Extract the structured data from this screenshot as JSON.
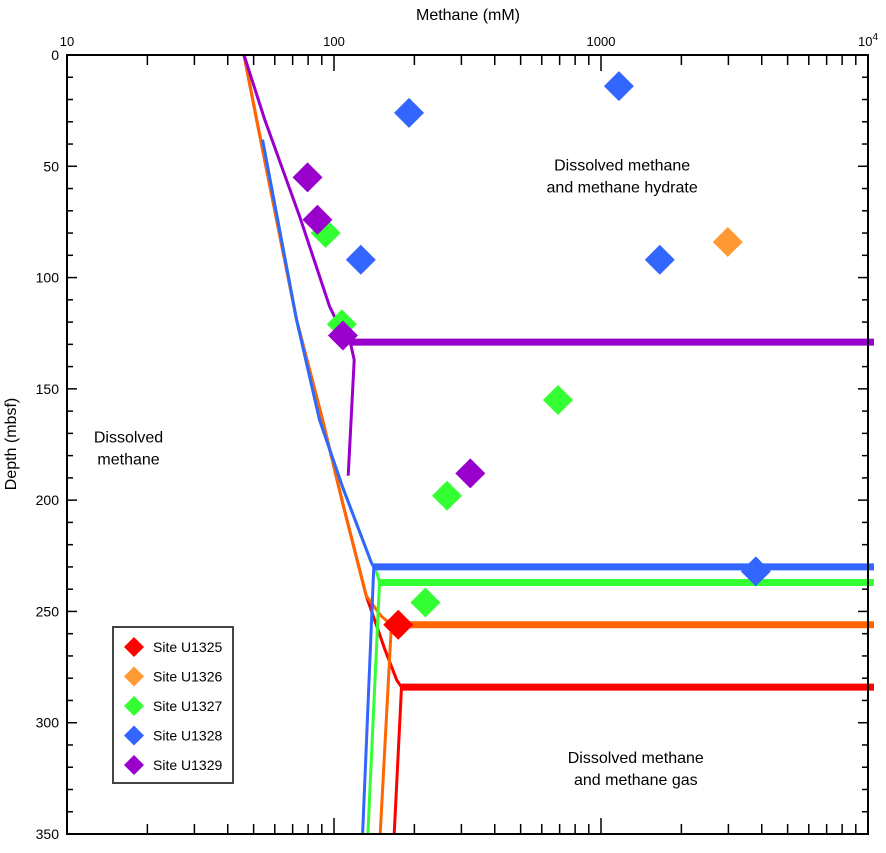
{
  "chart_data": {
    "type": "scatter",
    "title": "",
    "xlabel": "Methane (mM)",
    "ylabel": "Depth (mbsf)",
    "xscale": "log",
    "xlim": [
      10,
      10000
    ],
    "ylim": [
      0,
      350
    ],
    "y_inverted": true,
    "x_tick_labels": [
      {
        "v": 10,
        "t": "10"
      },
      {
        "v": 100,
        "t": "100"
      },
      {
        "v": 1000,
        "t": "1000"
      },
      {
        "v": 10000,
        "t": "10",
        "sup": "4"
      }
    ],
    "y_ticks": [
      0,
      50,
      100,
      150,
      200,
      250,
      300,
      350
    ],
    "legend_position": "bottom-left",
    "annotations": [
      {
        "lines": [
          "Dissolved methane",
          "and methane hydrate"
        ],
        "x": 1200,
        "y": 52
      },
      {
        "lines": [
          "Dissolved",
          "methane"
        ],
        "x": 17,
        "y": 174
      },
      {
        "lines": [
          "Dissolved methane",
          "and methane gas"
        ],
        "x": 1350,
        "y": 318
      }
    ],
    "series": [
      {
        "name": "Site U1325",
        "color": "#ff0000",
        "points": [
          [
            174,
            256
          ]
        ],
        "lines": [
          [
            [
              46,
              0
            ],
            [
              51.3,
              29
            ],
            [
              72.4,
              119
            ],
            [
              90.6,
              164
            ],
            [
              107.6,
              201
            ],
            [
              132,
              243
            ],
            [
              155,
              267
            ],
            [
              172,
              281
            ],
            [
              179,
              284
            ],
            [
              10000,
              284
            ]
          ],
          [
            [
              179,
              284
            ],
            [
              168,
              350
            ]
          ]
        ]
      },
      {
        "name": "Site U1326",
        "color": "#ff9933",
        "line_color": "#ff6600",
        "points": [
          [
            2985,
            84
          ]
        ],
        "lines": [
          [
            [
              46,
              0
            ],
            [
              51.3,
              29
            ],
            [
              72.4,
              119
            ],
            [
              90.6,
              164
            ],
            [
              107.6,
              201
            ],
            [
              132,
              243
            ],
            [
              150,
              252
            ],
            [
              164,
              256
            ],
            [
              10000,
              256
            ]
          ],
          [
            [
              164,
              256
            ],
            [
              149,
              350
            ]
          ]
        ]
      },
      {
        "name": "Site U1327",
        "color": "#33ff33",
        "points": [
          [
            93,
            80
          ],
          [
            107,
            121
          ],
          [
            690,
            155
          ],
          [
            265,
            198
          ],
          [
            220,
            246
          ]
        ],
        "lines": [
          [
            [
              54,
              38
            ],
            [
              72.4,
              119
            ],
            [
              88.3,
              164
            ],
            [
              107.6,
              194
            ],
            [
              138,
              228
            ],
            [
              145,
              233
            ],
            [
              148,
              237
            ],
            [
              10000,
              237
            ]
          ],
          [
            [
              148,
              237
            ],
            [
              134,
              350
            ]
          ]
        ]
      },
      {
        "name": "Site U1328",
        "color": "#3366ff",
        "points": [
          [
            1167,
            14
          ],
          [
            191,
            26
          ],
          [
            126,
            92
          ],
          [
            1660,
            92
          ],
          [
            3800,
            232
          ]
        ],
        "lines": [
          [
            [
              54,
              38
            ],
            [
              72.4,
              119
            ],
            [
              88.3,
              164
            ],
            [
              107.6,
              194
            ],
            [
              138,
              228
            ],
            [
              141,
              230
            ],
            [
              10000,
              230
            ]
          ],
          [
            [
              141,
              230
            ],
            [
              128,
              350
            ]
          ]
        ]
      },
      {
        "name": "Site U1329",
        "color": "#9900cc",
        "points": [
          [
            79.6,
            55
          ],
          [
            86.7,
            74
          ],
          [
            108,
            126
          ],
          [
            324,
            188
          ]
        ],
        "lines": [
          [
            [
              46,
              0
            ],
            [
              55,
              29
            ],
            [
              74.6,
              73
            ],
            [
              96.3,
              113
            ],
            [
              107.6,
              125
            ],
            [
              115,
              129
            ],
            [
              10000,
              129
            ]
          ],
          [
            [
              115,
              129
            ],
            [
              119,
              137
            ],
            [
              113,
              189
            ]
          ]
        ]
      }
    ]
  }
}
